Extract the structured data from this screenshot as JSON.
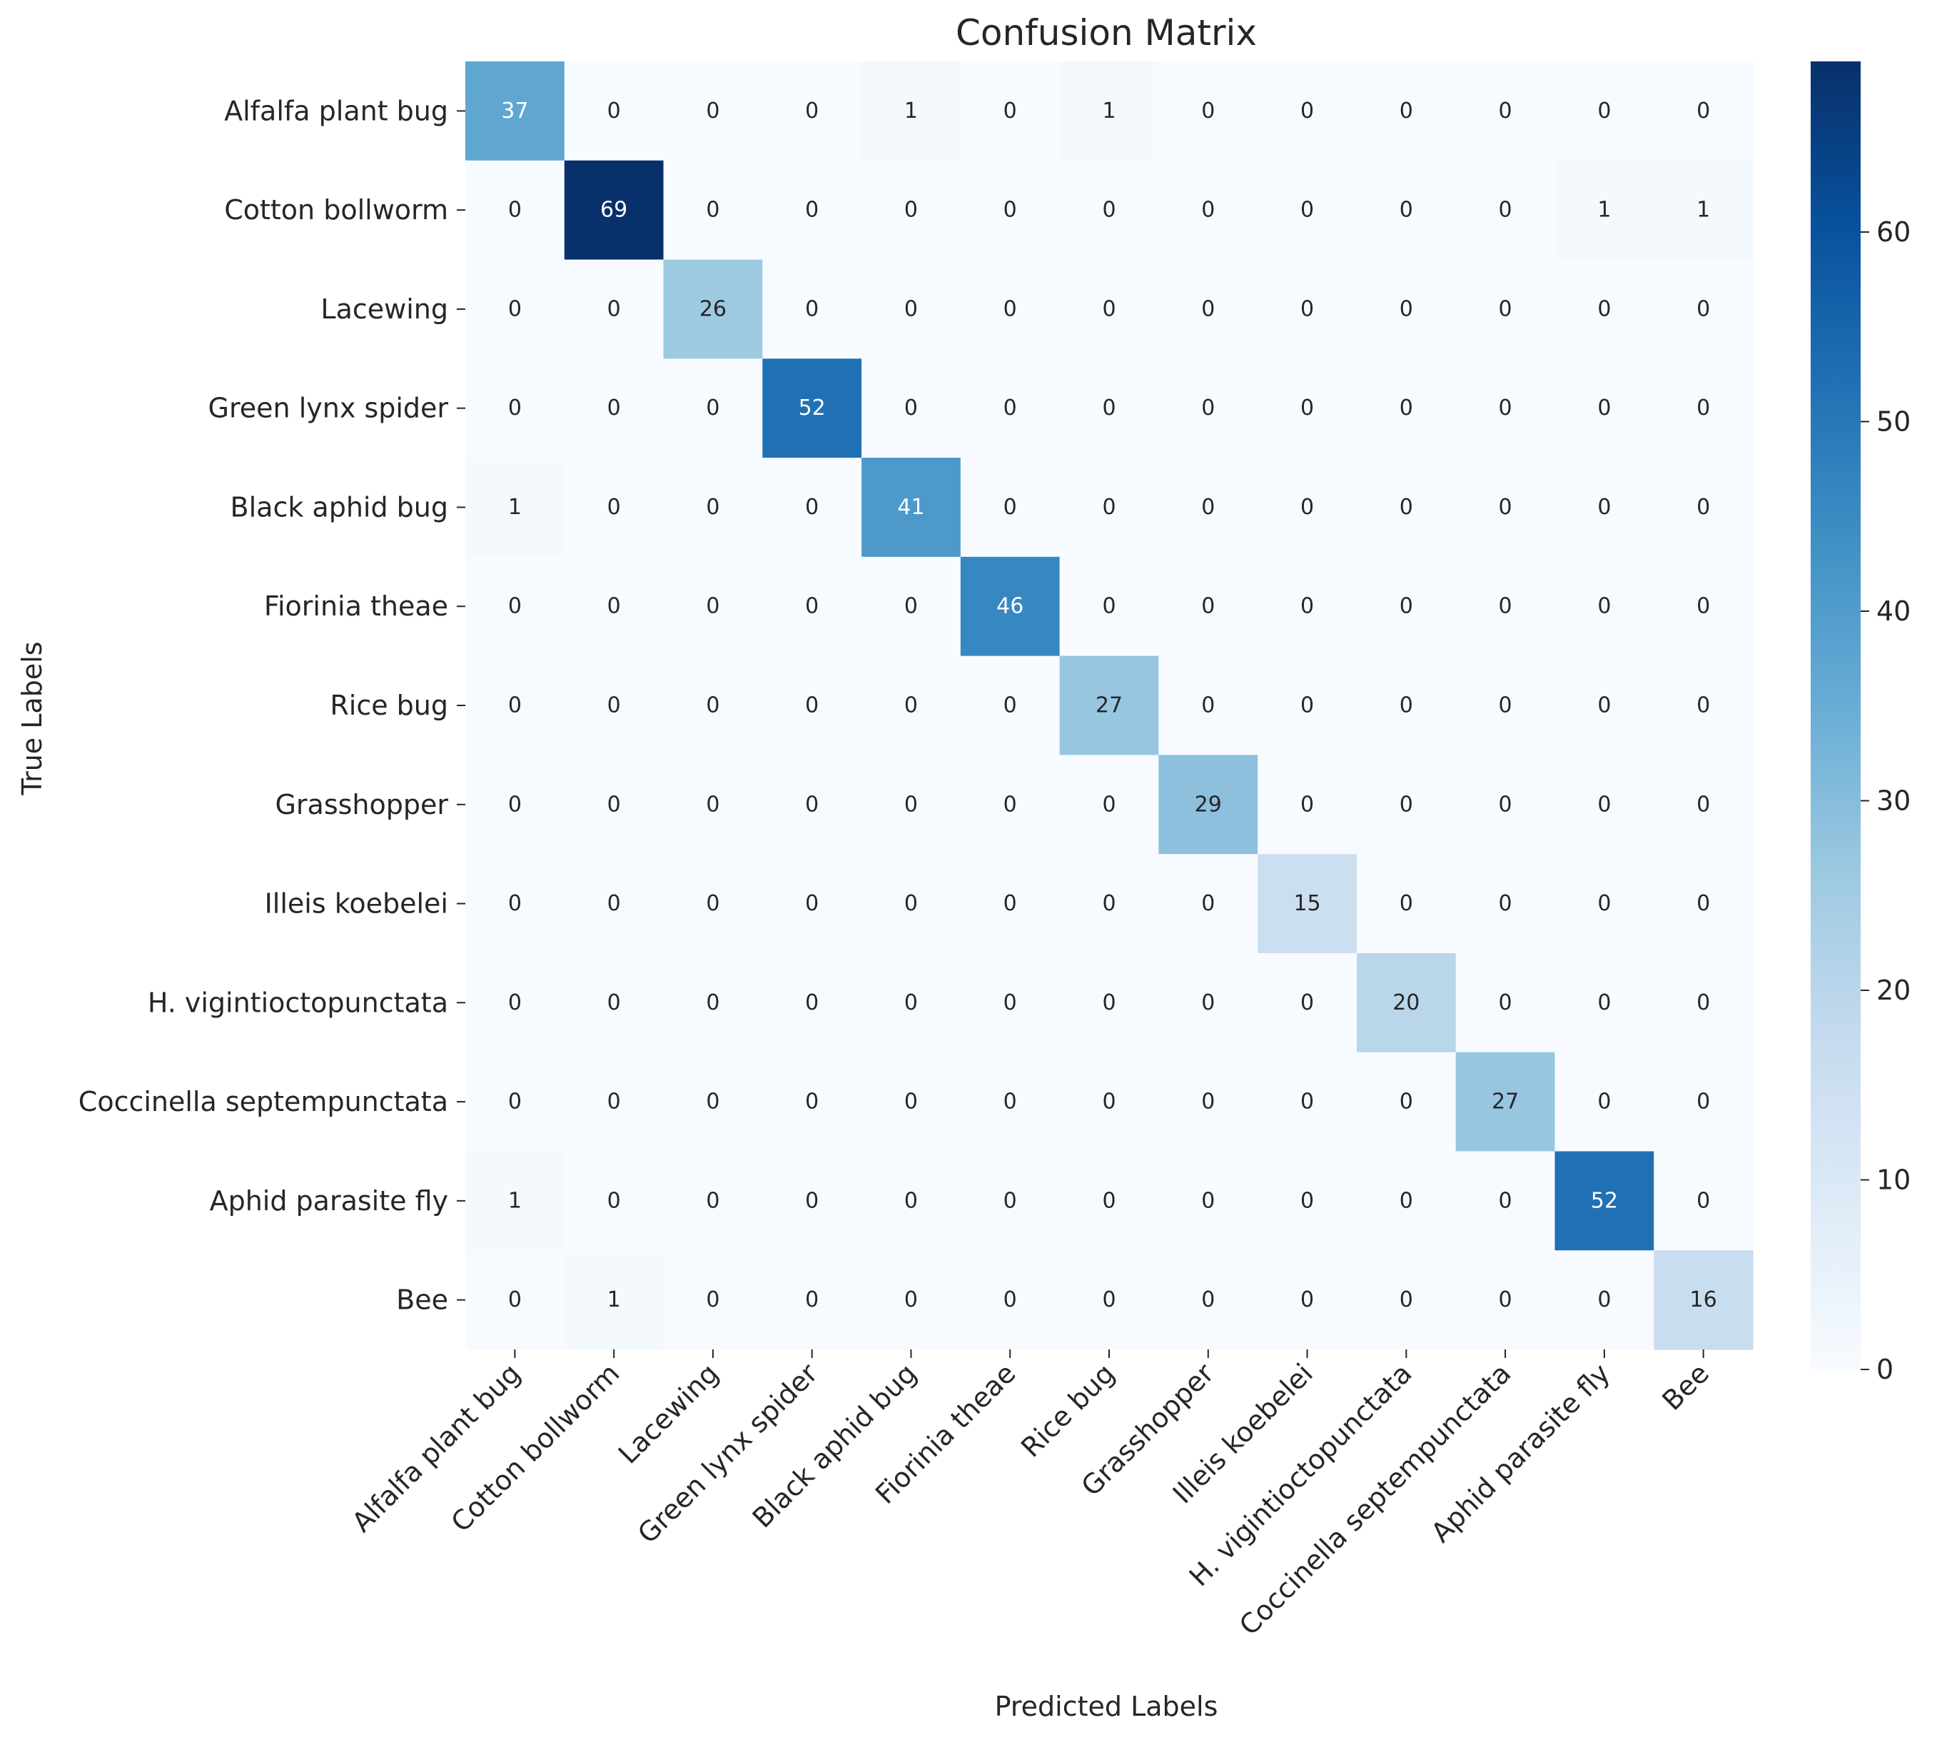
{
  "chart_data": {
    "type": "heatmap",
    "title": "Confusion Matrix",
    "xlabel": "Predicted Labels",
    "ylabel": "True Labels",
    "categories": [
      "Alfalfa plant bug",
      "Cotton bollworm",
      "Lacewing",
      "Green lynx spider",
      "Black aphid bug",
      "Fiorinia theae",
      "Rice bug",
      "Grasshopper",
      "Illeis koebelei",
      "H. vigintioctopunctata",
      "Coccinella septempunctata",
      "Aphid parasite fly",
      "Bee"
    ],
    "matrix": [
      [
        37,
        0,
        0,
        0,
        1,
        0,
        1,
        0,
        0,
        0,
        0,
        0,
        0
      ],
      [
        0,
        69,
        0,
        0,
        0,
        0,
        0,
        0,
        0,
        0,
        0,
        1,
        1
      ],
      [
        0,
        0,
        26,
        0,
        0,
        0,
        0,
        0,
        0,
        0,
        0,
        0,
        0
      ],
      [
        0,
        0,
        0,
        52,
        0,
        0,
        0,
        0,
        0,
        0,
        0,
        0,
        0
      ],
      [
        1,
        0,
        0,
        0,
        41,
        0,
        0,
        0,
        0,
        0,
        0,
        0,
        0
      ],
      [
        0,
        0,
        0,
        0,
        0,
        46,
        0,
        0,
        0,
        0,
        0,
        0,
        0
      ],
      [
        0,
        0,
        0,
        0,
        0,
        0,
        27,
        0,
        0,
        0,
        0,
        0,
        0
      ],
      [
        0,
        0,
        0,
        0,
        0,
        0,
        0,
        29,
        0,
        0,
        0,
        0,
        0
      ],
      [
        0,
        0,
        0,
        0,
        0,
        0,
        0,
        0,
        15,
        0,
        0,
        0,
        0
      ],
      [
        0,
        0,
        0,
        0,
        0,
        0,
        0,
        0,
        0,
        20,
        0,
        0,
        0
      ],
      [
        0,
        0,
        0,
        0,
        0,
        0,
        0,
        0,
        0,
        0,
        27,
        0,
        0
      ],
      [
        1,
        0,
        0,
        0,
        0,
        0,
        0,
        0,
        0,
        0,
        0,
        52,
        0
      ],
      [
        0,
        1,
        0,
        0,
        0,
        0,
        0,
        0,
        0,
        0,
        0,
        0,
        16
      ]
    ],
    "colormap": "Blues",
    "vmin": 0,
    "vmax": 69,
    "colorbar_ticks": [
      0,
      10,
      20,
      30,
      40,
      50,
      60
    ]
  }
}
